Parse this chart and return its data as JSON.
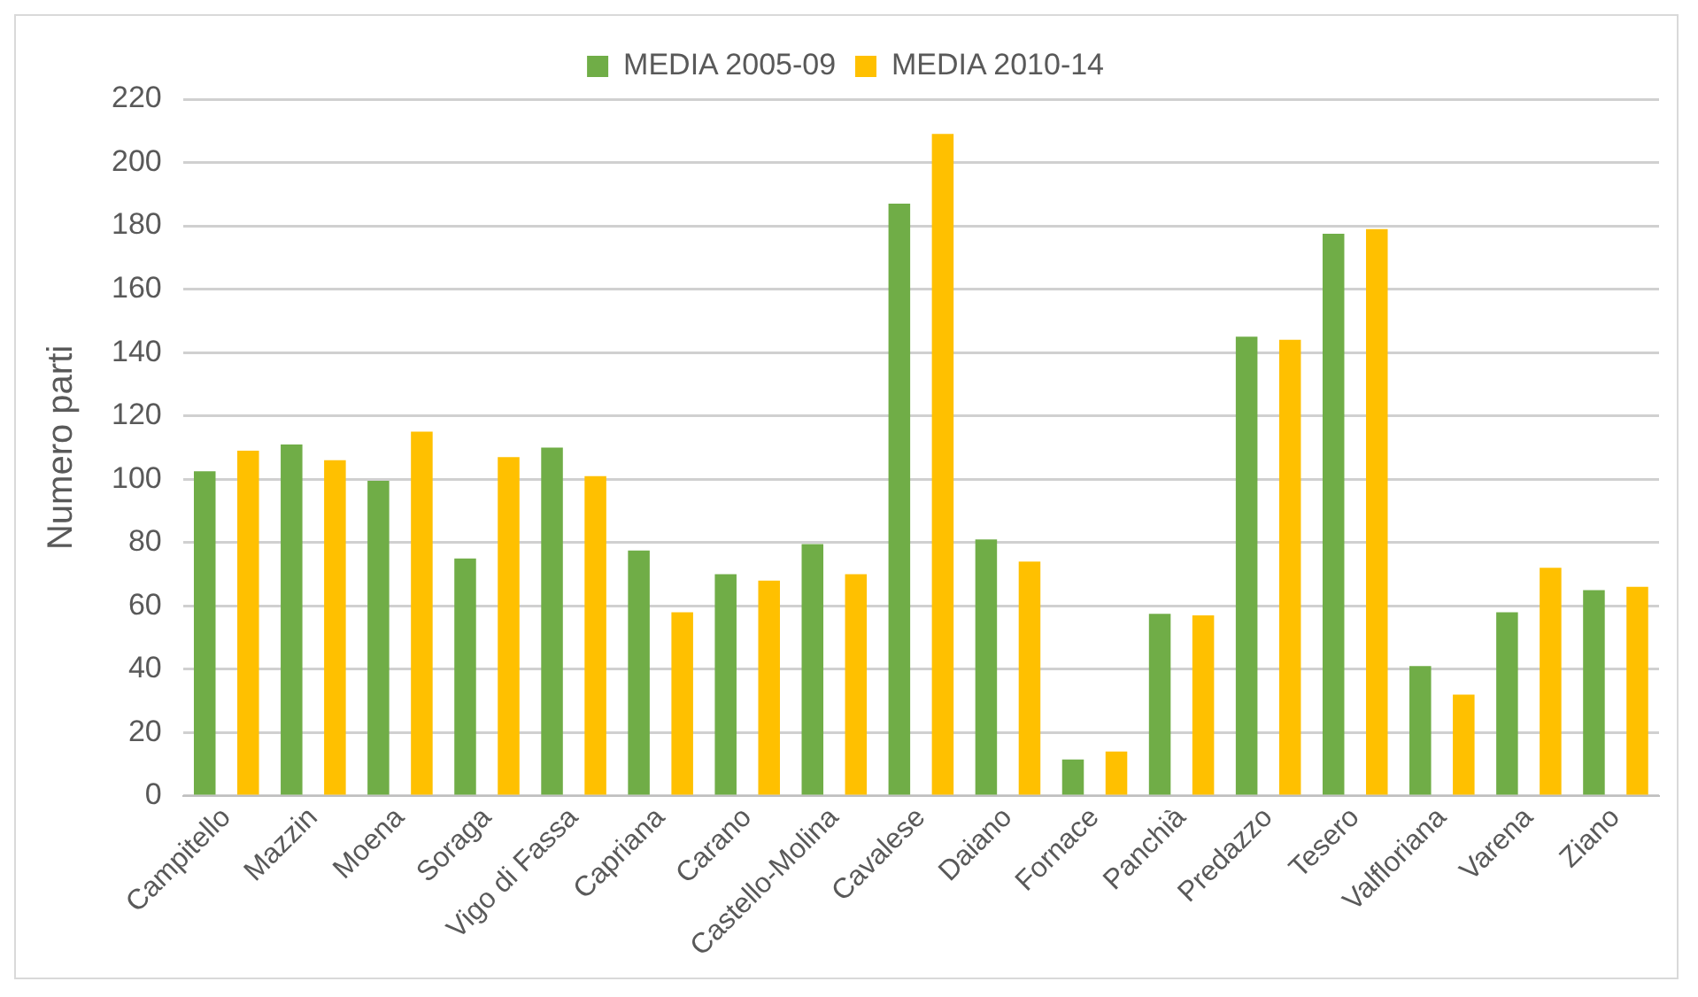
{
  "chart_data": {
    "type": "bar",
    "ylabel": "Numero parti",
    "categories": [
      "Campitello",
      "Mazzin",
      "Moena",
      "Soraga",
      "Vigo di Fassa",
      "Capriana",
      "Carano",
      "Castello-Molina",
      "Cavalese",
      "Daiano",
      "Fornace",
      "Panchià",
      "Predazzo",
      "Tesero",
      "Valfloriana",
      "Varena",
      "Ziano"
    ],
    "series": [
      {
        "name": "MEDIA 2005-09",
        "color": "#70ad47",
        "values": [
          102.5,
          111,
          99.5,
          75,
          110,
          77.5,
          70,
          79.5,
          187,
          81,
          11.5,
          57.5,
          145,
          177.5,
          41,
          58,
          65
        ]
      },
      {
        "name": "MEDIA 2010-14",
        "color": "#ffc000",
        "values": [
          109,
          106,
          115,
          107,
          101,
          58,
          68,
          70,
          209,
          74,
          14,
          57,
          144,
          179,
          32,
          72,
          66
        ]
      }
    ],
    "ylim": [
      0,
      220
    ],
    "yticks": [
      0,
      20,
      40,
      60,
      80,
      100,
      120,
      140,
      160,
      180,
      200,
      220
    ],
    "grid": "y",
    "legend": "top"
  }
}
